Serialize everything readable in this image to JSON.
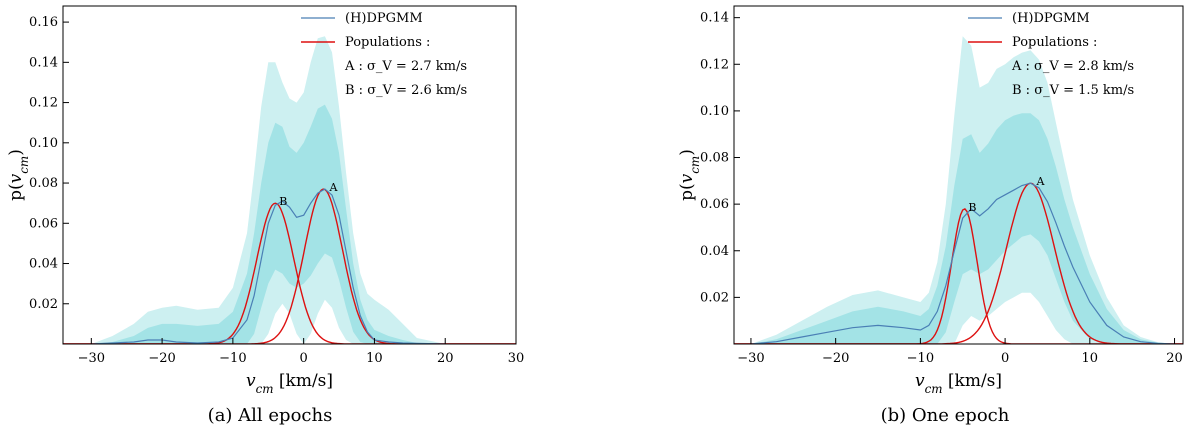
{
  "colors": {
    "band_outer": "#cdf0f1",
    "band_middle": "#a3e3e6",
    "band_inner": "#8fdde1",
    "dpgmm_line": "#4a7fb5",
    "population_line": "#dd1111",
    "axis": "#000000"
  },
  "chart_data": [
    {
      "type": "line",
      "caption": "(a)  All epochs",
      "xlabel": "v_cm [km/s]",
      "ylabel": "p(v_cm)",
      "xlim": [
        -34,
        30
      ],
      "ylim": [
        0,
        0.168
      ],
      "xticks": [
        -30,
        -20,
        -10,
        0,
        10,
        20,
        30
      ],
      "yticks": [
        0.02,
        0.04,
        0.06,
        0.08,
        0.1,
        0.12,
        0.14,
        0.16
      ],
      "ytick_labels": [
        "0.02",
        "0.04",
        "0.06",
        "0.08",
        "0.10",
        "0.12",
        "0.14",
        "0.16"
      ],
      "legend": {
        "position": "top-right",
        "dpgmm": "(H)DPGMM",
        "populations": "Populations :",
        "pop_a": "A :  σ_V = 2.7 km/s",
        "pop_b": "B :  σ_V = 2.6 km/s"
      },
      "median": {
        "x": [
          -30,
          -27,
          -24,
          -22,
          -20,
          -18,
          -15,
          -12,
          -10,
          -8,
          -7,
          -6,
          -5,
          -4,
          -3,
          -2,
          -1,
          0,
          1,
          2,
          3,
          4,
          5,
          6,
          7,
          8,
          9,
          10,
          12,
          14,
          16,
          20
        ],
        "y": [
          0.0,
          0.0005,
          0.001,
          0.002,
          0.002,
          0.001,
          0.0005,
          0.001,
          0.003,
          0.012,
          0.024,
          0.042,
          0.06,
          0.069,
          0.071,
          0.068,
          0.063,
          0.064,
          0.07,
          0.075,
          0.077,
          0.074,
          0.064,
          0.046,
          0.028,
          0.014,
          0.006,
          0.002,
          0.001,
          0.0005,
          0.0003,
          0.0
        ]
      },
      "bands": [
        {
          "name": "outer",
          "x": [
            -30,
            -27,
            -24,
            -22,
            -20,
            -18,
            -15,
            -12,
            -10,
            -8,
            -7,
            -6,
            -5,
            -4,
            -3,
            -2,
            -1,
            0,
            1,
            2,
            3,
            4,
            5,
            6,
            7,
            8,
            9,
            10,
            12,
            14,
            16,
            20
          ],
          "lower": [
            0,
            0,
            0,
            0,
            0,
            0,
            0,
            0,
            0,
            0,
            0,
            0,
            0.005,
            0.015,
            0.02,
            0.015,
            0.005,
            0.0,
            0.005,
            0.015,
            0.022,
            0.018,
            0.008,
            0.002,
            0,
            0,
            0,
            0,
            0,
            0,
            0,
            0
          ],
          "upper": [
            0.0,
            0.004,
            0.01,
            0.016,
            0.018,
            0.019,
            0.017,
            0.018,
            0.028,
            0.055,
            0.085,
            0.118,
            0.14,
            0.14,
            0.13,
            0.122,
            0.12,
            0.125,
            0.14,
            0.152,
            0.153,
            0.145,
            0.118,
            0.085,
            0.055,
            0.035,
            0.025,
            0.022,
            0.017,
            0.01,
            0.003,
            0.0
          ]
        },
        {
          "name": "middle",
          "x": [
            -30,
            -27,
            -24,
            -22,
            -20,
            -18,
            -15,
            -12,
            -10,
            -8,
            -7,
            -6,
            -5,
            -4,
            -3,
            -2,
            -1,
            0,
            1,
            2,
            3,
            4,
            5,
            6,
            7,
            8,
            9,
            10,
            12,
            14,
            16,
            20
          ],
          "lower": [
            0,
            0,
            0,
            0,
            0,
            0,
            0,
            0,
            0,
            0,
            0.005,
            0.018,
            0.03,
            0.037,
            0.035,
            0.03,
            0.028,
            0.03,
            0.034,
            0.04,
            0.045,
            0.043,
            0.032,
            0.018,
            0.006,
            0.001,
            0,
            0,
            0,
            0,
            0,
            0
          ],
          "upper": [
            0.0,
            0.001,
            0.004,
            0.008,
            0.01,
            0.01,
            0.009,
            0.01,
            0.016,
            0.035,
            0.055,
            0.08,
            0.1,
            0.11,
            0.108,
            0.098,
            0.095,
            0.1,
            0.108,
            0.117,
            0.119,
            0.112,
            0.095,
            0.067,
            0.04,
            0.022,
            0.012,
            0.007,
            0.004,
            0.002,
            0.0005,
            0.0
          ]
        }
      ],
      "populations": [
        {
          "name": "A",
          "mu": 2.8,
          "sigma": 2.7,
          "peak": 0.077
        },
        {
          "name": "B",
          "mu": -4.0,
          "sigma": 2.6,
          "peak": 0.07
        }
      ]
    },
    {
      "type": "line",
      "caption": "(b)  One epoch",
      "xlabel": "v_cm [km/s]",
      "ylabel": "p(v_cm)",
      "xlim": [
        -32,
        21
      ],
      "ylim": [
        0,
        0.145
      ],
      "xticks": [
        -30,
        -20,
        -10,
        0,
        10,
        20
      ],
      "yticks": [
        0.02,
        0.04,
        0.06,
        0.08,
        0.1,
        0.12,
        0.14
      ],
      "ytick_labels": [
        "0.02",
        "0.04",
        "0.06",
        "0.08",
        "0.10",
        "0.12",
        "0.14"
      ],
      "legend": {
        "position": "top-right",
        "dpgmm": "(H)DPGMM",
        "populations": "Populations :",
        "pop_a": "A :  σ_V = 2.8 km/s",
        "pop_b": "B :  σ_V = 1.5 km/s"
      },
      "median": {
        "x": [
          -30,
          -27,
          -24,
          -21,
          -18,
          -15,
          -12,
          -10,
          -9,
          -8,
          -7,
          -6,
          -5,
          -4,
          -3,
          -2,
          -1,
          0,
          1,
          2,
          3,
          4,
          5,
          6,
          7,
          8,
          10,
          12,
          14,
          16,
          18,
          20
        ],
        "y": [
          0.0,
          0.001,
          0.003,
          0.005,
          0.007,
          0.008,
          0.007,
          0.006,
          0.008,
          0.014,
          0.025,
          0.04,
          0.054,
          0.058,
          0.055,
          0.058,
          0.062,
          0.064,
          0.066,
          0.068,
          0.069,
          0.067,
          0.061,
          0.052,
          0.042,
          0.033,
          0.018,
          0.008,
          0.003,
          0.001,
          0.0003,
          0.0
        ]
      },
      "bands": [
        {
          "name": "outer",
          "x": [
            -30,
            -27,
            -24,
            -21,
            -18,
            -15,
            -12,
            -10,
            -9,
            -8,
            -7,
            -6,
            -5,
            -4,
            -3,
            -2,
            -1,
            0,
            1,
            2,
            3,
            4,
            5,
            6,
            7,
            8,
            10,
            12,
            14,
            16,
            18,
            20
          ],
          "lower": [
            0,
            0,
            0,
            0,
            0,
            0,
            0,
            0,
            0,
            0,
            0,
            0,
            0.008,
            0.012,
            0.01,
            0.012,
            0.015,
            0.018,
            0.02,
            0.022,
            0.022,
            0.018,
            0.012,
            0.006,
            0.002,
            0,
            0,
            0,
            0,
            0,
            0,
            0
          ],
          "upper": [
            0.0,
            0.004,
            0.01,
            0.016,
            0.021,
            0.023,
            0.02,
            0.018,
            0.022,
            0.035,
            0.06,
            0.098,
            0.132,
            0.128,
            0.11,
            0.112,
            0.118,
            0.12,
            0.123,
            0.125,
            0.126,
            0.122,
            0.112,
            0.095,
            0.078,
            0.062,
            0.038,
            0.02,
            0.008,
            0.003,
            0.0008,
            0.0
          ]
        },
        {
          "name": "middle",
          "x": [
            -30,
            -27,
            -24,
            -21,
            -18,
            -15,
            -12,
            -10,
            -9,
            -8,
            -7,
            -6,
            -5,
            -4,
            -3,
            -2,
            -1,
            0,
            1,
            2,
            3,
            4,
            5,
            6,
            7,
            8,
            10,
            12,
            14,
            16,
            18,
            20
          ],
          "lower": [
            0,
            0,
            0,
            0,
            0,
            0,
            0,
            0,
            0,
            0,
            0.005,
            0.018,
            0.03,
            0.032,
            0.03,
            0.032,
            0.036,
            0.04,
            0.043,
            0.046,
            0.047,
            0.044,
            0.038,
            0.028,
            0.018,
            0.01,
            0.002,
            0,
            0,
            0,
            0,
            0
          ],
          "upper": [
            0.0,
            0.002,
            0.006,
            0.01,
            0.014,
            0.016,
            0.014,
            0.012,
            0.015,
            0.025,
            0.042,
            0.068,
            0.088,
            0.09,
            0.082,
            0.086,
            0.092,
            0.096,
            0.098,
            0.099,
            0.099,
            0.096,
            0.088,
            0.076,
            0.062,
            0.05,
            0.03,
            0.015,
            0.006,
            0.002,
            0.0006,
            0.0
          ]
        }
      ],
      "populations": [
        {
          "name": "A",
          "mu": 3.0,
          "sigma": 2.8,
          "peak": 0.069
        },
        {
          "name": "B",
          "mu": -4.8,
          "sigma": 1.5,
          "peak": 0.058
        }
      ]
    }
  ]
}
